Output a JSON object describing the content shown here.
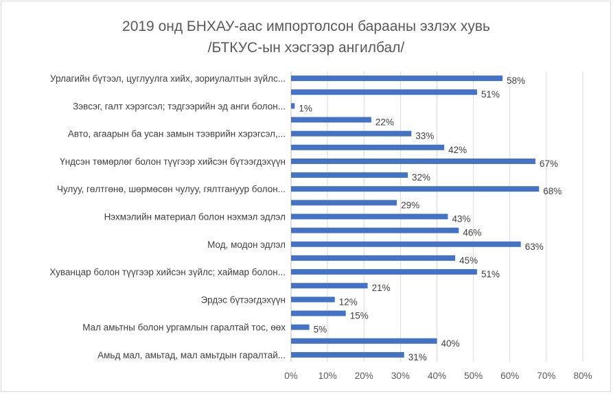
{
  "chart_data": {
    "type": "bar",
    "orientation": "horizontal",
    "title": "2019 онд БНХАУ-аас импортолсон барааны эзлэх хувь",
    "subtitle": "/БТКУС-ын хэсгээр ангилбал/",
    "xlabel": "",
    "ylabel": "",
    "xlim": [
      0,
      80
    ],
    "x_ticks": [
      "0%",
      "10%",
      "20%",
      "30%",
      "40%",
      "50%",
      "60%",
      "70%",
      "80%"
    ],
    "grid": true,
    "legend": "none",
    "color": "#4472c4",
    "categories": [
      "Урлагийн бүтээл, цуглуулга хийх, зориулалтын зүйлс...",
      "",
      "Зэвсэг, галт хэрэгсэл; тэдгээрийн эд анги болон...",
      "",
      "Авто, агаарын ба усан замын тээврийн хэрэгсэл,...",
      "",
      "Үндсэн төмөрлөг болон түүгээр хийсэн бүтээгдэхүүн",
      "",
      "Чулуу, гөлтгөнө, шөрмөсөн чулуу, гялтгануур болон...",
      "",
      "Нэхмэлийн материал болон нэхмэл эдлэл",
      "",
      "Мод, модон эдлэл",
      "",
      "Хуванцар болон түүгээр хийсэн зүйлс; хаймар болон...",
      "",
      "Эрдэс бүтээгдэхүүн",
      "",
      "Мал амьтны болон ургамлын гаралтай тос, өөх",
      "",
      "Амьд мал, амьтад, мал амьтдын гаралтай..."
    ],
    "values": [
      58,
      51,
      1,
      22,
      33,
      42,
      67,
      32,
      68,
      29,
      43,
      46,
      63,
      45,
      51,
      21,
      12,
      15,
      5,
      40,
      31
    ],
    "data_labels": [
      "58%",
      "51%",
      "1%",
      "22%",
      "33%",
      "42%",
      "67%",
      "32%",
      "68%",
      "29%",
      "43%",
      "46%",
      "63%",
      "45%",
      "51%",
      "21%",
      "12%",
      "15%",
      "5%",
      "40%",
      "31%"
    ]
  }
}
